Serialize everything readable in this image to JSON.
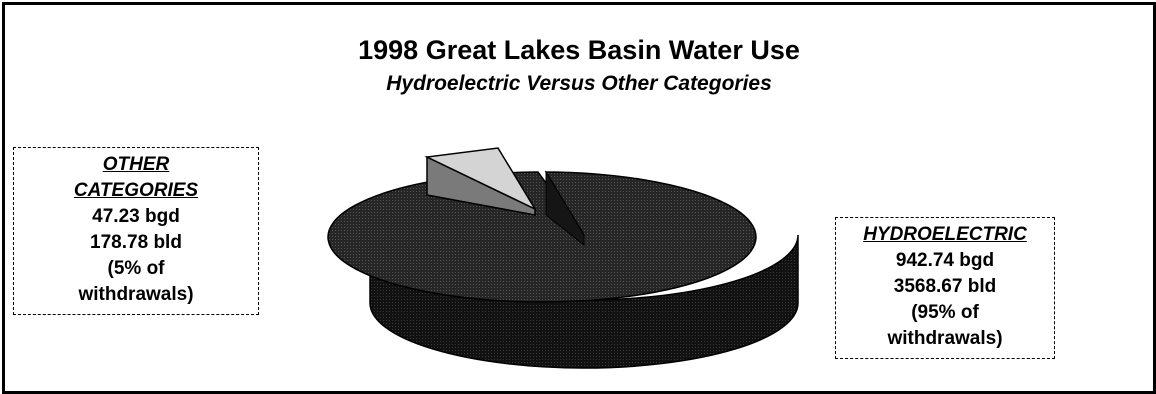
{
  "chart_data": {
    "type": "pie",
    "title": "1998 Great Lakes Basin Water Use",
    "subtitle": "Hydroelectric Versus Other Categories",
    "slices": [
      {
        "label": "HYDROELECTRIC",
        "bgd": "942.74 bgd",
        "bld": "3568.67 bld",
        "pct_text": "(95% of",
        "pct_text2": "withdrawals)",
        "value": 942.74,
        "percent": 95,
        "color": "#1f1f1f"
      },
      {
        "label": "OTHER CATEGORIES",
        "label_line1": "OTHER",
        "label_line2": "CATEGORIES",
        "bgd": "47.23 bgd",
        "bld": "178.78 bld",
        "pct_text": "(5% of",
        "pct_text2": "withdrawals)",
        "value": 47.23,
        "percent": 5,
        "color": "#d4d4d4",
        "exploded": true
      }
    ],
    "style": "3d-exploded-pie"
  }
}
